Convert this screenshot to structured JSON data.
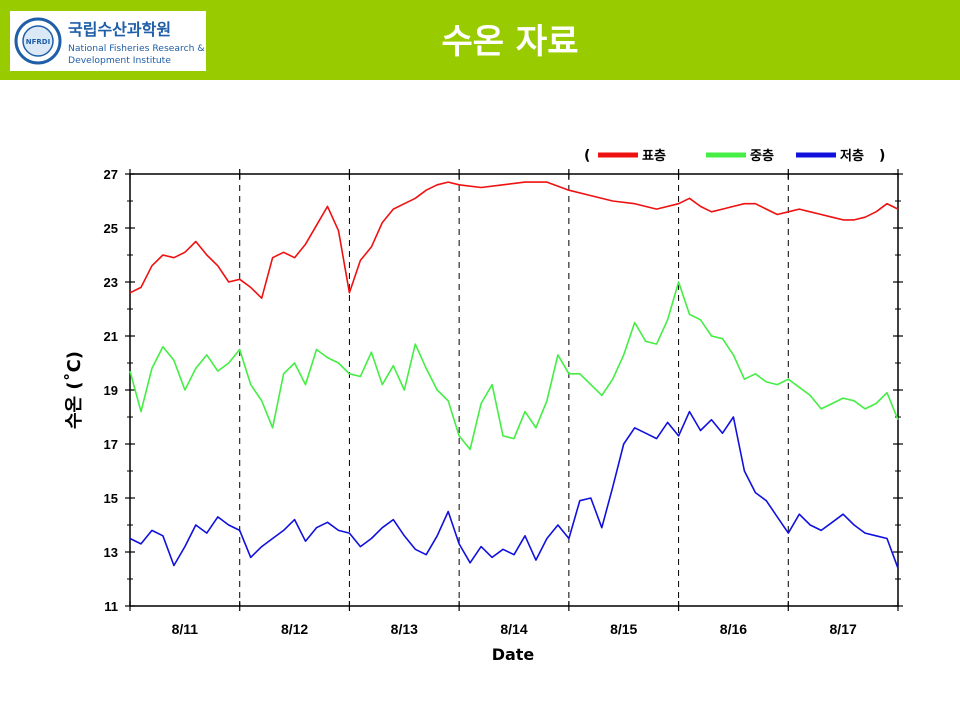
{
  "slide": {
    "title": "수온 자료",
    "logo_text_1": "국립수산과학원",
    "logo_text_2": "National Fisheries Research &",
    "logo_text_3": "Development Institute",
    "logo_seal_text": "NFRDI",
    "header_color": "#99cc00"
  },
  "chart_data": {
    "type": "line",
    "xlabel": "Date",
    "ylabel": "수온 (˚C)",
    "ylim": [
      11,
      27
    ],
    "yticks": [
      11,
      13,
      15,
      17,
      19,
      21,
      23,
      25,
      27
    ],
    "xlim": [
      0,
      7
    ],
    "date_labels": [
      {
        "x": 0.5,
        "label": "8/11"
      },
      {
        "x": 1.5,
        "label": "8/12"
      },
      {
        "x": 2.5,
        "label": "8/13"
      },
      {
        "x": 3.5,
        "label": "8/14"
      },
      {
        "x": 4.5,
        "label": "8/15"
      },
      {
        "x": 5.5,
        "label": "8/16"
      },
      {
        "x": 6.5,
        "label": "8/17"
      }
    ],
    "day_boundaries": [
      1,
      2,
      3,
      4,
      5,
      6
    ],
    "legend": {
      "open": "(",
      "close": ")"
    },
    "series": [
      {
        "name": "표층",
        "color": "#ee1111",
        "x": [
          0,
          0.1,
          0.2,
          0.3,
          0.4,
          0.5,
          0.6,
          0.7,
          0.8,
          0.9,
          1.0,
          1.1,
          1.2,
          1.3,
          1.4,
          1.5,
          1.6,
          1.7,
          1.8,
          1.9,
          2.0,
          2.1,
          2.2,
          2.3,
          2.4,
          2.5,
          2.6,
          2.7,
          2.8,
          2.9,
          3.0,
          3.2,
          3.4,
          3.6,
          3.8,
          4.0,
          4.2,
          4.4,
          4.6,
          4.8,
          5.0,
          5.1,
          5.2,
          5.3,
          5.4,
          5.5,
          5.6,
          5.7,
          5.8,
          5.9,
          6.0,
          6.1,
          6.2,
          6.3,
          6.4,
          6.5,
          6.6,
          6.7,
          6.8,
          6.9,
          7.0
        ],
        "values": [
          22.6,
          22.8,
          23.6,
          24.0,
          23.9,
          24.1,
          24.5,
          24.0,
          23.6,
          23.0,
          23.1,
          22.8,
          22.4,
          23.9,
          24.1,
          23.9,
          24.4,
          25.1,
          25.8,
          24.9,
          22.6,
          23.8,
          24.3,
          25.2,
          25.7,
          25.9,
          26.1,
          26.4,
          26.6,
          26.7,
          26.6,
          26.5,
          26.6,
          26.7,
          26.7,
          26.4,
          26.2,
          26.0,
          25.9,
          25.7,
          25.9,
          26.1,
          25.8,
          25.6,
          25.7,
          25.8,
          25.9,
          25.9,
          25.7,
          25.5,
          25.6,
          25.7,
          25.6,
          25.5,
          25.4,
          25.3,
          25.3,
          25.4,
          25.6,
          25.9,
          25.7
        ]
      },
      {
        "name": "중층",
        "color": "#44ee44",
        "x": [
          0,
          0.1,
          0.2,
          0.3,
          0.4,
          0.5,
          0.6,
          0.7,
          0.8,
          0.9,
          1.0,
          1.1,
          1.2,
          1.3,
          1.4,
          1.5,
          1.6,
          1.7,
          1.8,
          1.9,
          2.0,
          2.1,
          2.2,
          2.3,
          2.4,
          2.5,
          2.6,
          2.7,
          2.8,
          2.9,
          3.0,
          3.1,
          3.2,
          3.3,
          3.4,
          3.5,
          3.6,
          3.7,
          3.8,
          3.9,
          4.0,
          4.1,
          4.2,
          4.3,
          4.4,
          4.5,
          4.6,
          4.7,
          4.8,
          4.9,
          5.0,
          5.1,
          5.2,
          5.3,
          5.4,
          5.5,
          5.6,
          5.7,
          5.8,
          5.9,
          6.0,
          6.1,
          6.2,
          6.3,
          6.4,
          6.5,
          6.6,
          6.7,
          6.8,
          6.9,
          7.0
        ],
        "values": [
          19.7,
          18.2,
          19.8,
          20.6,
          20.1,
          19.0,
          19.8,
          20.3,
          19.7,
          20.0,
          20.5,
          19.2,
          18.6,
          17.6,
          19.6,
          20.0,
          19.2,
          20.5,
          20.2,
          20.0,
          19.6,
          19.5,
          20.4,
          19.2,
          19.9,
          19.0,
          20.7,
          19.8,
          19.0,
          18.6,
          17.3,
          16.8,
          18.5,
          19.2,
          17.3,
          17.2,
          18.2,
          17.6,
          18.6,
          20.3,
          19.6,
          19.6,
          19.2,
          18.8,
          19.4,
          20.3,
          21.5,
          20.8,
          20.7,
          21.6,
          23.0,
          21.8,
          21.6,
          21.0,
          20.9,
          20.3,
          19.4,
          19.6,
          19.3,
          19.2,
          19.4,
          19.1,
          18.8,
          18.3,
          18.5,
          18.7,
          18.6,
          18.3,
          18.5,
          18.9,
          17.9
        ]
      },
      {
        "name": "저층",
        "color": "#1111dd",
        "x": [
          0,
          0.1,
          0.2,
          0.3,
          0.4,
          0.5,
          0.6,
          0.7,
          0.8,
          0.9,
          1.0,
          1.1,
          1.2,
          1.3,
          1.4,
          1.5,
          1.6,
          1.7,
          1.8,
          1.9,
          2.0,
          2.1,
          2.2,
          2.3,
          2.4,
          2.5,
          2.6,
          2.7,
          2.8,
          2.9,
          3.0,
          3.1,
          3.2,
          3.3,
          3.4,
          3.5,
          3.6,
          3.7,
          3.8,
          3.9,
          4.0,
          4.1,
          4.2,
          4.3,
          4.4,
          4.5,
          4.6,
          4.7,
          4.8,
          4.9,
          5.0,
          5.1,
          5.2,
          5.3,
          5.4,
          5.5,
          5.6,
          5.7,
          5.8,
          5.9,
          6.0,
          6.1,
          6.2,
          6.3,
          6.4,
          6.5,
          6.6,
          6.7,
          6.8,
          6.9,
          7.0
        ],
        "values": [
          13.5,
          13.3,
          13.8,
          13.6,
          12.5,
          13.2,
          14.0,
          13.7,
          14.3,
          14.0,
          13.8,
          12.8,
          13.2,
          13.5,
          13.8,
          14.2,
          13.4,
          13.9,
          14.1,
          13.8,
          13.7,
          13.2,
          13.5,
          13.9,
          14.2,
          13.6,
          13.1,
          12.9,
          13.6,
          14.5,
          13.3,
          12.6,
          13.2,
          12.8,
          13.1,
          12.9,
          13.6,
          12.7,
          13.5,
          14.0,
          13.5,
          14.9,
          15.0,
          13.9,
          15.4,
          17.0,
          17.6,
          17.4,
          17.2,
          17.8,
          17.3,
          18.2,
          17.5,
          17.9,
          17.4,
          18.0,
          16.0,
          15.2,
          14.9,
          14.3,
          13.7,
          14.4,
          14.0,
          13.8,
          14.1,
          14.4,
          14.0,
          13.7,
          13.6,
          13.5,
          12.4
        ]
      }
    ]
  }
}
